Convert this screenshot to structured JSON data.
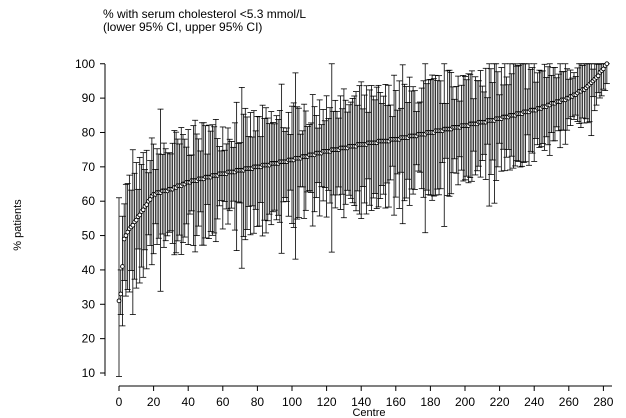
{
  "chart_data": {
    "type": "scatter",
    "title": "% with serum cholesterol <5.3 mmol/L",
    "subtitle": "(lower 95% CI, upper 95% CI)",
    "xlabel": "Centre",
    "ylabel": "% patients",
    "xlim": [
      0,
      280
    ],
    "ylim": [
      10,
      100
    ],
    "x_ticks": [
      "0",
      "20",
      "40",
      "60",
      "80",
      "100",
      "120",
      "140",
      "160",
      "180",
      "200",
      "220",
      "240",
      "260",
      "280"
    ],
    "y_ticks": [
      "10",
      "20",
      "30",
      "40",
      "50",
      "60",
      "70",
      "80",
      "90",
      "100"
    ],
    "grid": false,
    "legend": "none",
    "n_centres": 283,
    "series": [
      {
        "point_estimate_anchors": [
          [
            0,
            31
          ],
          [
            1,
            33
          ],
          [
            3,
            49
          ],
          [
            6,
            52
          ],
          [
            8,
            53
          ],
          [
            12,
            56
          ],
          [
            16,
            59
          ],
          [
            20,
            62
          ],
          [
            30,
            63.5
          ],
          [
            40,
            65.5
          ],
          [
            60,
            68
          ],
          [
            80,
            70
          ],
          [
            100,
            72
          ],
          [
            120,
            74.5
          ],
          [
            140,
            76.5
          ],
          [
            160,
            78
          ],
          [
            180,
            80
          ],
          [
            200,
            82
          ],
          [
            220,
            84
          ],
          [
            240,
            86.5
          ],
          [
            260,
            90
          ],
          [
            270,
            93
          ],
          [
            276,
            96
          ],
          [
            279,
            98
          ],
          [
            282,
            100
          ]
        ],
        "lower_95ci_typical_offset": -13,
        "upper_95ci_typical_offset": 11,
        "marker": "hollow-circle",
        "color": "#000000"
      }
    ]
  }
}
